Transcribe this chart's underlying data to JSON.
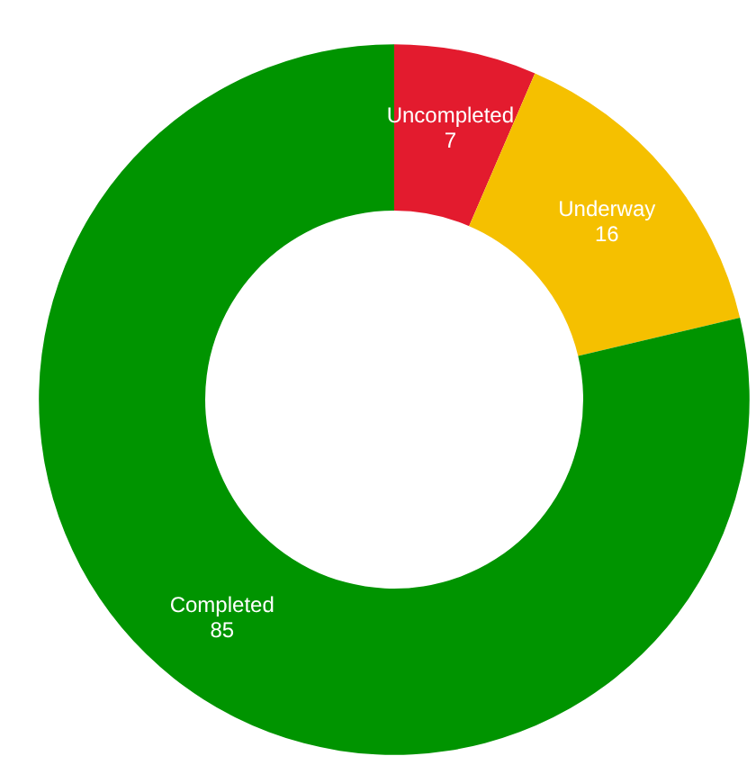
{
  "chart_data": {
    "type": "donut",
    "categories": [
      "Uncompleted",
      "Underway",
      "Completed"
    ],
    "values": [
      7,
      16,
      85
    ],
    "colors": [
      "#e31b2e",
      "#f5c000",
      "#009400"
    ],
    "data_labels": true
  }
}
